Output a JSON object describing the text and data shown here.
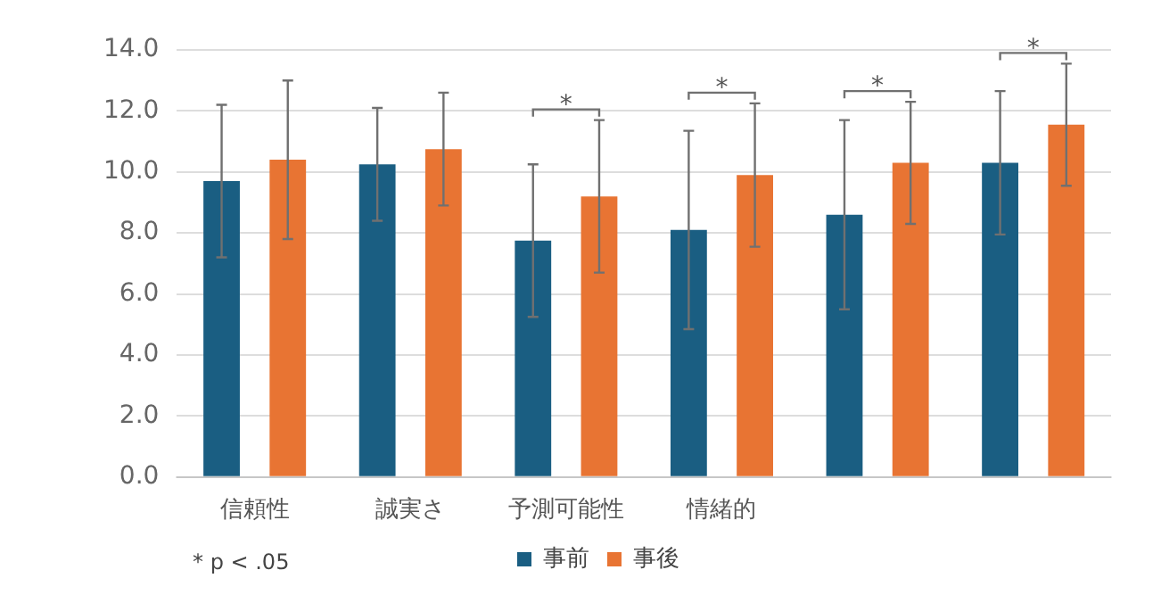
{
  "chart_data": {
    "type": "bar",
    "categories": [
      "信頼性",
      "誠実さ",
      "予測可能性",
      "情緒的",
      null,
      null
    ],
    "series": [
      {
        "name": "事前",
        "color": "#1a5e82",
        "values": [
          9.7,
          10.25,
          7.75,
          8.1,
          8.6,
          10.3
        ],
        "errors": [
          2.5,
          1.85,
          2.5,
          3.25,
          3.1,
          2.35
        ]
      },
      {
        "name": "事後",
        "color": "#e87433",
        "values": [
          10.4,
          10.75,
          9.2,
          9.9,
          10.3,
          11.55
        ],
        "errors": [
          2.6,
          1.85,
          2.5,
          2.35,
          2.0,
          2.0
        ]
      }
    ],
    "ylim": [
      0,
      14
    ],
    "yticks": [
      {
        "value": 0,
        "label": "0.0"
      },
      {
        "value": 2,
        "label": "2.0"
      },
      {
        "value": 4,
        "label": "4.0"
      },
      {
        "value": 6,
        "label": "6.0"
      },
      {
        "value": 8,
        "label": "8.0"
      },
      {
        "value": 10,
        "label": "10.0"
      },
      {
        "value": 12,
        "label": "12.0"
      },
      {
        "value": 14,
        "label": "14.0"
      }
    ],
    "grid": "y",
    "legend": "bottom",
    "annotations": [
      "*",
      "*",
      "*",
      "*",
      "* p < .05"
    ]
  }
}
